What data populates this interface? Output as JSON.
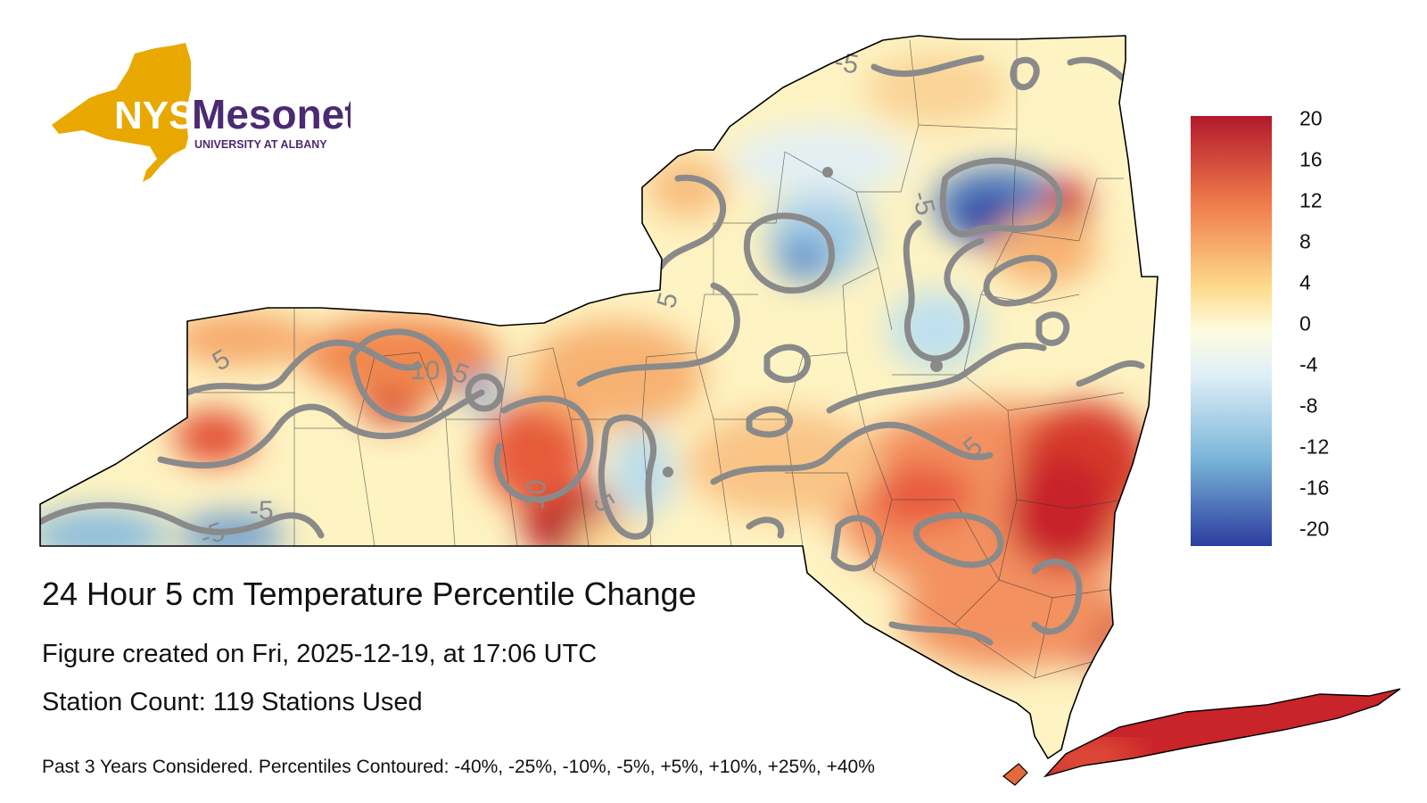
{
  "logo": {
    "abbr": "NYS",
    "name": "Mesonet",
    "org": "UNIVERSITY AT ALBANY",
    "state_color": "#E8A800",
    "text_color": "#4B2A73"
  },
  "map": {
    "contour_labels": [
      "5",
      "10",
      "5",
      "-5",
      "10",
      "5",
      "5",
      "-5",
      "-5",
      "-5",
      "5"
    ],
    "colors": {
      "contour": "#8a8a8a",
      "outline": "#000000",
      "county": "#333333"
    }
  },
  "legend": {
    "ticks": [
      "20",
      "16",
      "12",
      "8",
      "4",
      "0",
      "-4",
      "-8",
      "-12",
      "-16",
      "-20"
    ],
    "stops": [
      {
        "value": 20,
        "color": "#B2182B"
      },
      {
        "value": 12,
        "color": "#EF7A4A"
      },
      {
        "value": 4,
        "color": "#FDDB8C"
      },
      {
        "value": 0,
        "color": "#FEFCE0"
      },
      {
        "value": -4,
        "color": "#E0F0F7"
      },
      {
        "value": -12,
        "color": "#79B4D8"
      },
      {
        "value": -20,
        "color": "#2B3C9E"
      }
    ]
  },
  "captions": {
    "title": "24 Hour 5 cm Temperature Percentile Change",
    "created": "Figure created on Fri, 2025-12-19, at 17:06 UTC",
    "stations": "Station Count: 119 Stations Used",
    "note": "Past 3 Years Considered. Percentiles Contoured: -40%, -25%, -10%, -5%, +5%, +10%, +25%, +40%"
  }
}
